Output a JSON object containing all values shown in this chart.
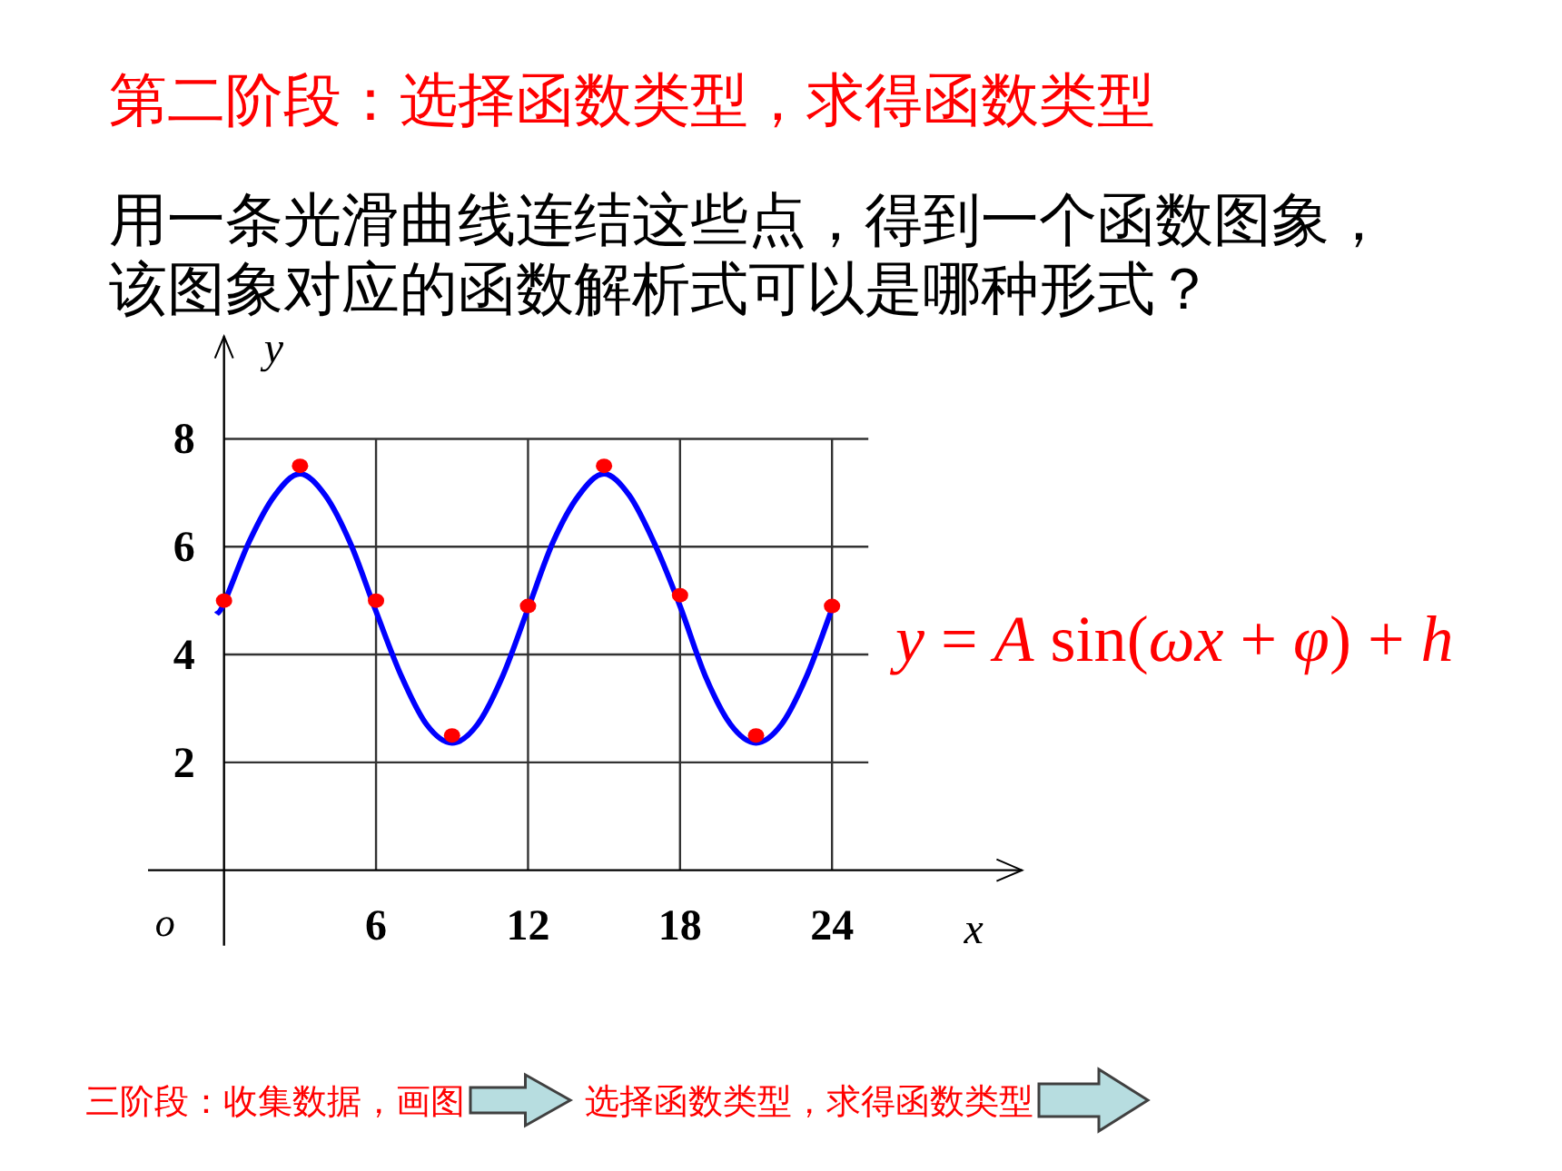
{
  "chart_data": {
    "type": "line",
    "title": "第二阶段：选择函数类型，求得函数类型",
    "subtitle": "用一条光滑曲线连结这些点，得到一个函数图象，该图象对应的函数解析式可以是哪种形式？",
    "xlabel": "x",
    "ylabel": "y",
    "xlim": [
      -3,
      31.5
    ],
    "ylim": [
      -1.4,
      9.9
    ],
    "xticks": [
      6,
      12,
      18,
      24
    ],
    "yticks": [
      2,
      4,
      6,
      8
    ],
    "grid": true,
    "series": [
      {
        "color": "#0000ff",
        "x": [
          -0.3,
          0,
          1,
          2,
          3,
          4,
          5,
          6,
          7,
          8,
          9,
          10,
          11,
          12,
          13,
          14,
          15,
          16,
          17,
          18,
          19,
          20,
          21,
          22,
          23,
          24
        ],
        "values": [
          4.75,
          4.95,
          6.1,
          6.95,
          7.35,
          6.95,
          6.05,
          4.8,
          3.6,
          2.7,
          2.36,
          2.7,
          3.6,
          4.85,
          6.1,
          6.95,
          7.35,
          6.95,
          6.05,
          4.9,
          3.6,
          2.7,
          2.36,
          2.7,
          3.6,
          4.85
        ]
      },
      {
        "type": "scatter",
        "color": "#ff0000",
        "marker": "circle",
        "x": [
          0,
          3,
          6,
          9,
          12,
          15,
          18,
          21,
          24
        ],
        "values": [
          5.0,
          7.5,
          5.0,
          2.5,
          4.9,
          7.5,
          5.1,
          2.5,
          4.9
        ]
      }
    ],
    "annotations": [
      "o",
      "y = A sin(ωx + φ) + h",
      "三阶段：收集数据，画图",
      "选择函数类型，求得函数类型"
    ]
  }
}
